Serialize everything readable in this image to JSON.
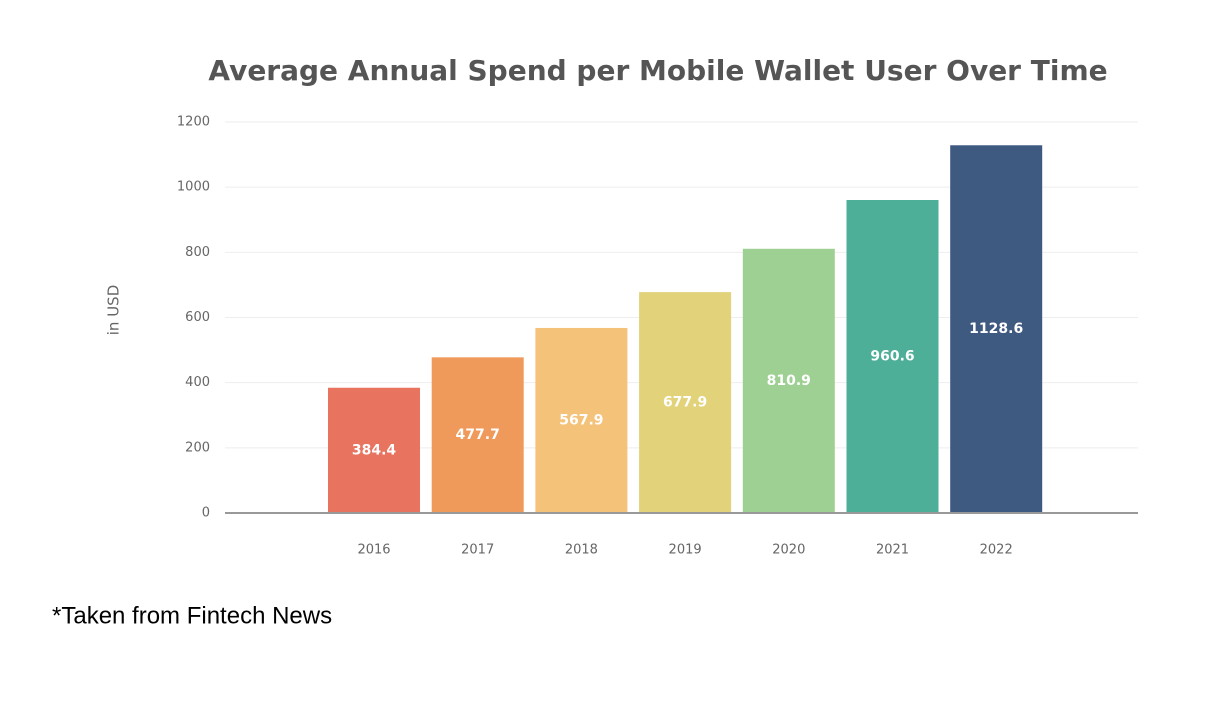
{
  "chart_data": {
    "type": "bar",
    "title": "Average Annual Spend per Mobile Wallet User Over Time",
    "ylabel": "in USD",
    "categories": [
      "2016",
      "2017",
      "2018",
      "2019",
      "2020",
      "2021",
      "2022"
    ],
    "values": [
      384.4,
      477.7,
      567.9,
      677.9,
      810.9,
      960.6,
      1128.6
    ],
    "colors": [
      "#e8735f",
      "#ef9a5a",
      "#f5c27a",
      "#e2d27a",
      "#9fd093",
      "#4daf98",
      "#3f5a80"
    ],
    "ylim": [
      0,
      1200
    ],
    "yticks": [
      0,
      200,
      400,
      600,
      800,
      1000,
      1200
    ],
    "grid": true
  },
  "caption": "*Taken from Fintech News"
}
